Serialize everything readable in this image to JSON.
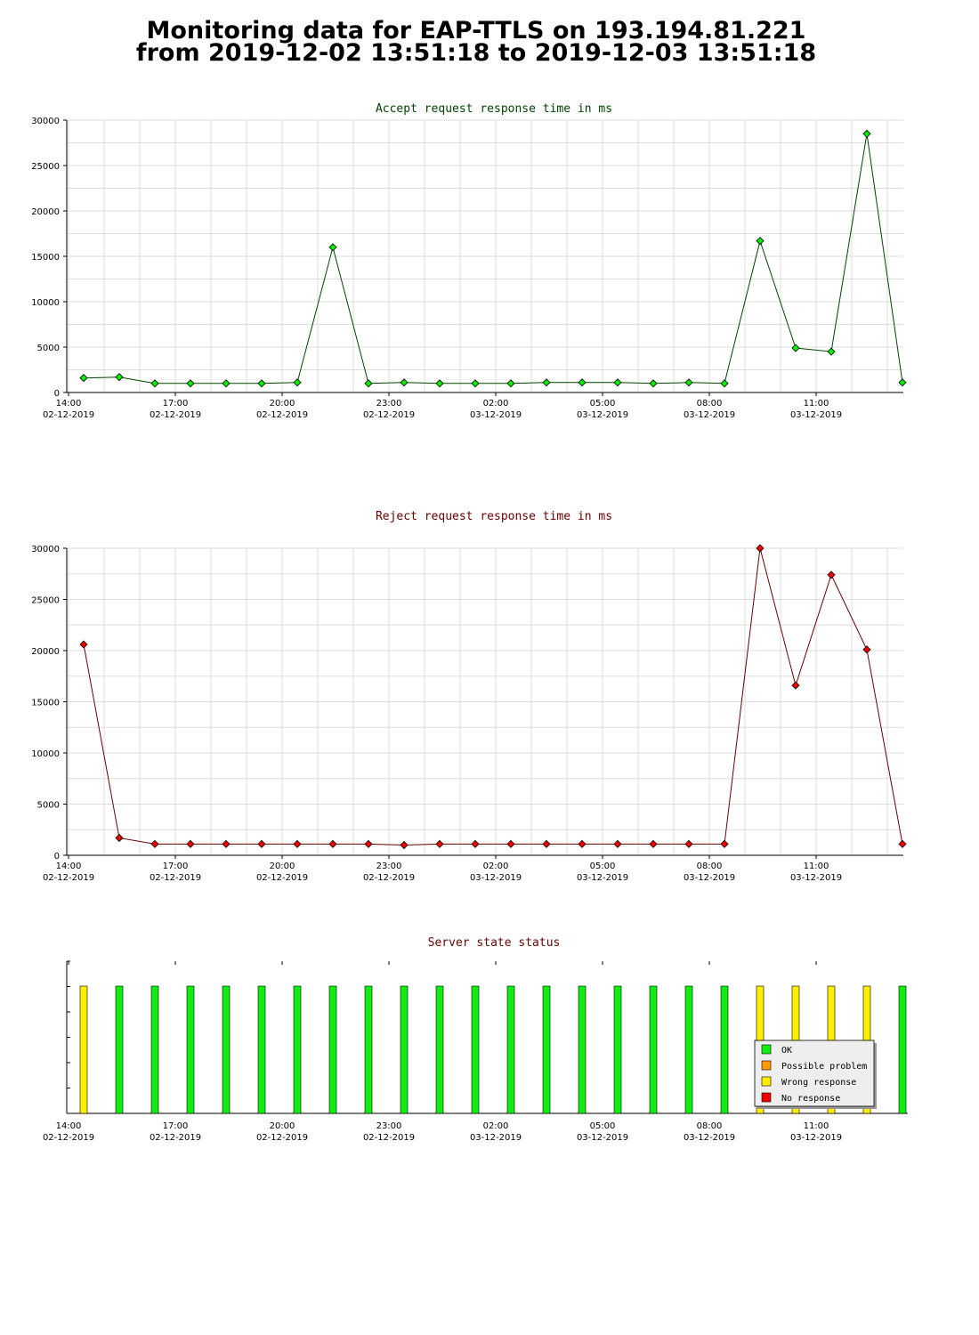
{
  "page": {
    "title_line1": "Monitoring data for EAP-TTLS on 193.194.81.221",
    "title_line2": "from 2019-12-02 13:51:18 to 2019-12-03 13:51:18"
  },
  "colors": {
    "accept_line": "#004400",
    "accept_marker": "#00ee00",
    "reject_line": "#660000",
    "reject_marker": "#ee0000",
    "accept_title": "#004400",
    "reject_title": "#660000",
    "status_title": "#660000",
    "ok": "#11ee11",
    "possible_problem": "#ff9900",
    "wrong_response": "#ffee00",
    "no_response": "#ee0000",
    "grid": "#dddddd"
  },
  "x_axis_ticks": [
    {
      "time": "14:00",
      "date": "02-12-2019"
    },
    {
      "time": "17:00",
      "date": "02-12-2019"
    },
    {
      "time": "20:00",
      "date": "02-12-2019"
    },
    {
      "time": "23:00",
      "date": "02-12-2019"
    },
    {
      "time": "02:00",
      "date": "03-12-2019"
    },
    {
      "time": "05:00",
      "date": "03-12-2019"
    },
    {
      "time": "08:00",
      "date": "03-12-2019"
    },
    {
      "time": "11:00",
      "date": "03-12-2019"
    }
  ],
  "chart_data": [
    {
      "type": "line",
      "title": "Accept request response time in ms",
      "ylim": [
        0,
        30000
      ],
      "yticks": [
        0,
        5000,
        10000,
        15000,
        20000,
        25000,
        30000
      ],
      "grid": true,
      "x_sampling": "hourly, 2019-12-02 14:30 to 2019-12-03 13:30",
      "values": [
        1600,
        1700,
        1000,
        1000,
        1000,
        1000,
        1100,
        16000,
        1000,
        1100,
        1000,
        1000,
        1000,
        1100,
        1100,
        1100,
        1000,
        1100,
        1000,
        16700,
        4900,
        4500,
        28500,
        1100
      ]
    },
    {
      "type": "line",
      "title": "Reject request response time in ms",
      "ylim": [
        0,
        30000
      ],
      "yticks": [
        0,
        5000,
        10000,
        15000,
        20000,
        25000,
        30000
      ],
      "grid": true,
      "x_sampling": "hourly, 2019-12-02 14:30 to 2019-12-03 13:30",
      "values": [
        20600,
        1700,
        1100,
        1100,
        1100,
        1100,
        1100,
        1100,
        1100,
        1000,
        1100,
        1100,
        1100,
        1100,
        1100,
        1100,
        1100,
        1100,
        1100,
        30000,
        16600,
        27400,
        20100,
        1100
      ]
    },
    {
      "type": "bar",
      "title": "Server state status",
      "grid": false,
      "legend_position": "bottom-right",
      "legend": [
        "OK",
        "Possible problem",
        "Wrong response",
        "No response"
      ],
      "states": [
        "Wrong response",
        "OK",
        "OK",
        "OK",
        "OK",
        "OK",
        "OK",
        "OK",
        "OK",
        "OK",
        "OK",
        "OK",
        "OK",
        "OK",
        "OK",
        "OK",
        "OK",
        "OK",
        "OK",
        "Wrong response",
        "Wrong response",
        "Wrong response",
        "Wrong response",
        "OK"
      ]
    }
  ]
}
